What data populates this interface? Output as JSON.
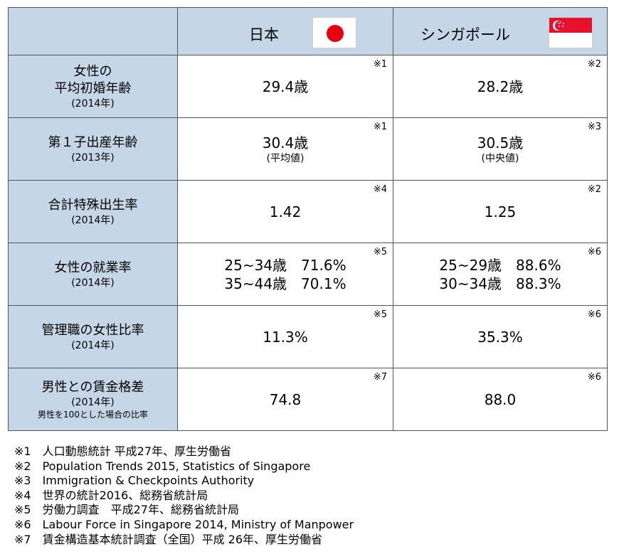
{
  "header": {
    "japan": "日本",
    "singapore": "シンガポール"
  },
  "rows": [
    {
      "label_lines": [
        "女性の",
        "平均初婚年齢"
      ],
      "year": "(2014年)",
      "note": "",
      "japan": {
        "lines": [
          "29.4歳"
        ],
        "sub": "",
        "ref": "※1"
      },
      "singapore": {
        "lines": [
          "28.2歳"
        ],
        "sub": "",
        "ref": "※2"
      }
    },
    {
      "label_lines": [
        "第１子出産年齢"
      ],
      "year": "(2013年)",
      "note": "",
      "japan": {
        "lines": [
          "30.4歳"
        ],
        "sub": "(平均値)",
        "ref": "※1"
      },
      "singapore": {
        "lines": [
          "30.5歳"
        ],
        "sub": "(中央値)",
        "ref": "※3"
      }
    },
    {
      "label_lines": [
        "合計特殊出生率"
      ],
      "year": "(2014年)",
      "note": "",
      "japan": {
        "lines": [
          "1.42"
        ],
        "sub": "",
        "ref": "※4"
      },
      "singapore": {
        "lines": [
          "1.25"
        ],
        "sub": "",
        "ref": "※2"
      }
    },
    {
      "label_lines": [
        "女性の就業率"
      ],
      "year": "(2014年)",
      "note": "",
      "japan": {
        "lines": [
          "25~34歳　71.6%",
          "35~44歳　70.1%"
        ],
        "sub": "",
        "ref": "※5"
      },
      "singapore": {
        "lines": [
          "25~29歳　88.6%",
          "30~34歳　88.3%"
        ],
        "sub": "",
        "ref": "※6"
      }
    },
    {
      "label_lines": [
        "管理職の女性比率"
      ],
      "year": "(2014年)",
      "note": "",
      "japan": {
        "lines": [
          "11.3%"
        ],
        "sub": "",
        "ref": "※5"
      },
      "singapore": {
        "lines": [
          "35.3%"
        ],
        "sub": "",
        "ref": "※6"
      }
    },
    {
      "label_lines": [
        "男性との賃金格差"
      ],
      "year": "(2014年)",
      "note": "男性を100とした場合の比率",
      "japan": {
        "lines": [
          "74.8"
        ],
        "sub": "",
        "ref": "※7"
      },
      "singapore": {
        "lines": [
          "88.0"
        ],
        "sub": "",
        "ref": "※6"
      }
    }
  ],
  "footnotes": [
    "※1　人口動態統計 平成27年、厚生労働省",
    "※2　Population Trends 2015, Statistics of Singapore",
    "※3　Immigration & Checkpoints Authority",
    "※4　世界の統計2016、総務省統計局",
    "※5　労働力調査　平成27年、総務省統計局",
    "※6　Labour Force in Singapore 2014, Ministry of Manpower",
    "※7　賃金構造基本統計調査（全国）平成 26年、厚生労働省"
  ],
  "colors": {
    "header_bg": "#c5d7e6",
    "border": "#555555",
    "japan_flag_disc": "#e60012",
    "singapore_flag_red": "#e8112d"
  },
  "icons": [
    "japan-flag-icon",
    "singapore-flag-icon"
  ]
}
